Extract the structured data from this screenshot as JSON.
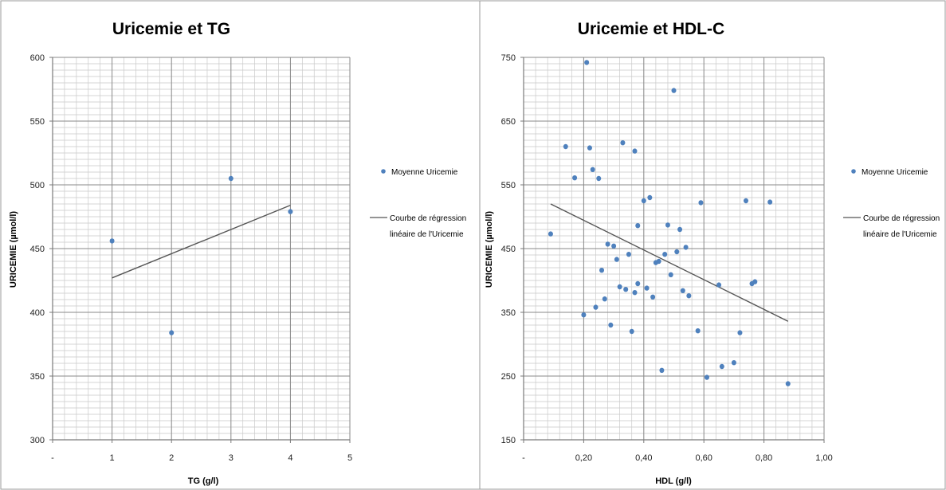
{
  "chart_data": [
    {
      "type": "scatter",
      "title": "Uricemie et TG",
      "xlabel": "TG (g/l)",
      "ylabel": "URICEMIE  (µmol/l)",
      "xlim": [
        0,
        5
      ],
      "ylim": [
        300,
        600
      ],
      "x_ticks": [
        "-",
        "1",
        "2",
        "3",
        "4",
        "5"
      ],
      "y_ticks": [
        "300",
        "350",
        "400",
        "450",
        "500",
        "550",
        "600"
      ],
      "grid": true,
      "legend_position": "right",
      "series": [
        {
          "name": "Moyenne Uricemie",
          "kind": "points",
          "color": "#4f81bd",
          "x": [
            1,
            2,
            3,
            4
          ],
          "y": [
            456,
            384,
            505,
            479
          ]
        },
        {
          "name": "Courbe de régression linéaire de l'Uricemie",
          "kind": "line",
          "color": "#555555",
          "x": [
            1,
            4
          ],
          "y": [
            427,
            484
          ]
        }
      ]
    },
    {
      "type": "scatter",
      "title": "Uricemie et HDL-C",
      "xlabel": "HDL (g/l)",
      "ylabel": "URICEMIE  (µmol/l)",
      "xlim": [
        0,
        1
      ],
      "ylim": [
        150,
        750
      ],
      "x_ticks": [
        "-",
        "0,20",
        "0,40",
        "0,60",
        "0,80",
        "1,00"
      ],
      "y_ticks": [
        "150",
        "250",
        "350",
        "450",
        "550",
        "650",
        "750"
      ],
      "grid": true,
      "legend_position": "right",
      "series": [
        {
          "name": "Moyenne Uricemie",
          "kind": "points",
          "color": "#4f81bd",
          "x": [
            0.21,
            0.5,
            0.33,
            0.14,
            0.22,
            0.37,
            0.23,
            0.17,
            0.25,
            0.42,
            0.4,
            0.74,
            0.82,
            0.59,
            0.09,
            0.38,
            0.48,
            0.52,
            0.28,
            0.3,
            0.54,
            0.51,
            0.35,
            0.47,
            0.31,
            0.45,
            0.44,
            0.26,
            0.49,
            0.38,
            0.77,
            0.76,
            0.65,
            0.32,
            0.34,
            0.41,
            0.37,
            0.53,
            0.55,
            0.43,
            0.27,
            0.24,
            0.2,
            0.29,
            0.36,
            0.58,
            0.72,
            0.7,
            0.66,
            0.46,
            0.61,
            0.88
          ],
          "y": [
            742,
            698,
            616,
            610,
            608,
            603,
            574,
            561,
            560,
            530,
            525,
            525,
            523,
            522,
            473,
            486,
            487,
            480,
            457,
            454,
            452,
            445,
            441,
            441,
            433,
            430,
            428,
            416,
            409,
            395,
            398,
            395,
            393,
            390,
            386,
            388,
            381,
            384,
            376,
            374,
            371,
            358,
            346,
            330,
            320,
            321,
            318,
            271,
            265,
            259,
            248,
            238
          ]
        },
        {
          "name": "Courbe de régression linéaire de l'Uricemie",
          "kind": "line",
          "color": "#555555",
          "x": [
            0.09,
            0.88
          ],
          "y": [
            520,
            336
          ]
        }
      ]
    }
  ]
}
